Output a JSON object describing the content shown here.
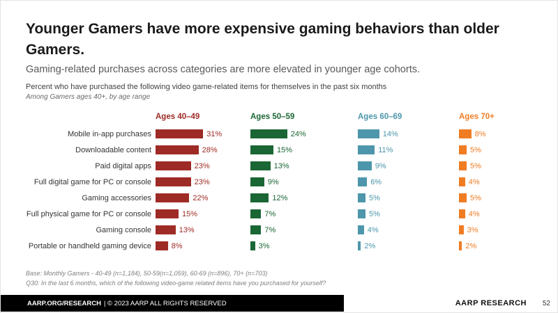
{
  "slide": {
    "title": "Younger Gamers have more expensive gaming behaviors than older Gamers.",
    "subtitle": "Gaming-related purchases across categories are more elevated in younger age cohorts.",
    "description": "Percent who have purchased the following video game-related items for themselves in the past six months",
    "scope_note": "Among Gamers ages 40+, by age range",
    "footnotes": {
      "base": "Base: Monthly Gamers - 40-49 (n=1,184), 50-59(n=1,059), 60-69 (n=896), 70+ (n=703)",
      "question": "Q30: In the last 6 months, which of the following video-game related items have you purchased for yourself?"
    },
    "footer": {
      "left_bold": "AARP.ORG/RESEARCH",
      "left_rest": "| © 2023 AARP ALL RIGHTS RESERVED",
      "right": "AARP RESEARCH",
      "page_number": "52"
    }
  },
  "chart_data": {
    "type": "bar",
    "orientation": "horizontal",
    "value_suffix": "%",
    "xlim": [
      0,
      35
    ],
    "grid": false,
    "legend_position": "column-headers",
    "categories": [
      "Mobile in-app purchases",
      "Downloadable content",
      "Paid digital apps",
      "Full digital game for PC or console",
      "Gaming accessories",
      "Full physical game for PC or console",
      "Gaming console",
      "Portable or handheld gaming device"
    ],
    "series": [
      {
        "name": "Ages 40–49",
        "color": "#9E2B25",
        "values": [
          31,
          28,
          23,
          23,
          22,
          15,
          13,
          8
        ]
      },
      {
        "name": "Ages 50–59",
        "color": "#1A6634",
        "values": [
          24,
          15,
          13,
          9,
          12,
          7,
          7,
          3
        ]
      },
      {
        "name": "Ages 60–69",
        "color": "#4D96AB",
        "values": [
          14,
          11,
          9,
          6,
          5,
          5,
          4,
          2
        ]
      },
      {
        "name": "Ages 70+",
        "color": "#F07C23",
        "values": [
          8,
          5,
          5,
          4,
          5,
          4,
          3,
          2
        ]
      }
    ]
  }
}
